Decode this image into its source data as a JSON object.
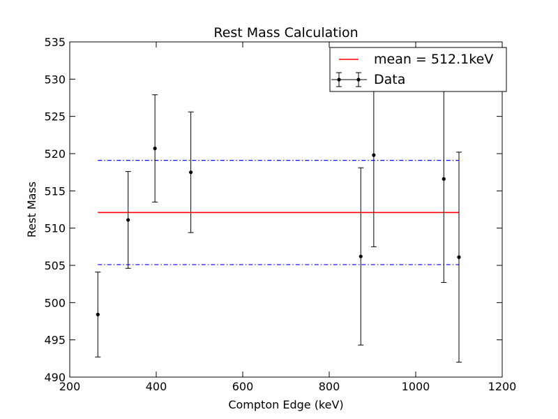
{
  "chart_data": {
    "type": "scatter",
    "title": "Rest Mass Calculation",
    "xlabel": "Compton Edge (keV)",
    "ylabel": "Rest Mass",
    "xlim": [
      200,
      1200
    ],
    "ylim": [
      490,
      535
    ],
    "xticks": [
      200,
      400,
      600,
      800,
      1000,
      1200
    ],
    "yticks": [
      490,
      495,
      500,
      505,
      510,
      515,
      520,
      525,
      530,
      535
    ],
    "grid": false,
    "legend_position": "top-right",
    "series": [
      {
        "name": "Data",
        "kind": "errorbar",
        "color": "#000000",
        "points": [
          {
            "x": 265,
            "y": 498.4,
            "yerr": 5.7
          },
          {
            "x": 335,
            "y": 511.1,
            "yerr": 6.5
          },
          {
            "x": 397,
            "y": 520.7,
            "yerr": 7.2
          },
          {
            "x": 480,
            "y": 517.5,
            "yerr": 8.1
          },
          {
            "x": 873,
            "y": 506.2,
            "yerr": 11.9
          },
          {
            "x": 903,
            "y": 519.8,
            "yerr": 12.3
          },
          {
            "x": 1065,
            "y": 516.6,
            "yerr": 13.9
          },
          {
            "x": 1100,
            "y": 506.1,
            "yerr": 14.1
          }
        ]
      },
      {
        "name": "mean = 512.1keV",
        "kind": "hline",
        "color": "#ff0000",
        "y": 512.1,
        "x": [
          265,
          1100
        ]
      },
      {
        "kind": "hline",
        "style": "dashdot",
        "color": "#0000ff",
        "y": 519.1,
        "x": [
          265,
          1100
        ]
      },
      {
        "kind": "hline",
        "style": "dashdot",
        "color": "#0000ff",
        "y": 505.1,
        "x": [
          265,
          1100
        ]
      }
    ]
  }
}
